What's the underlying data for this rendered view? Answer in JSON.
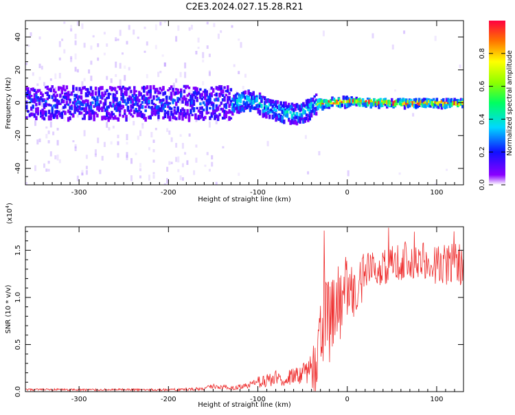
{
  "title": "C2E3.2024.027.15.28.R21",
  "chart_data": [
    {
      "type": "heatmap",
      "xlabel": "Height of straight line (km)",
      "ylabel": "Frequency (Hz)",
      "xlim": [
        -360,
        130
      ],
      "ylim": [
        -50,
        50
      ],
      "xticks": [
        -300,
        -200,
        -100,
        0,
        100
      ],
      "yticks": [
        -40,
        -20,
        0,
        20,
        40
      ],
      "colorbar": {
        "label": "Normalized spectral amplitude",
        "range": [
          0.0,
          1.0
        ],
        "ticks": [
          0.0,
          0.2,
          0.4,
          0.6,
          0.8
        ]
      },
      "ridge": {
        "x": [
          -360,
          -300,
          -250,
          -200,
          -150,
          -125,
          -110,
          -100,
          -90,
          -80,
          -70,
          -60,
          -50,
          -40,
          -30,
          -20,
          0,
          50,
          100,
          130
        ],
        "y": [
          0,
          0,
          0,
          0,
          0,
          0,
          2,
          0,
          -3,
          -5,
          -6,
          -7,
          -6,
          -2,
          0,
          0,
          1,
          0,
          0,
          0
        ]
      }
    },
    {
      "type": "line",
      "xlabel": "Height of straight line (km)",
      "ylabel": "SNR (10 * v/v)",
      "y_multiplier": "(x10",
      "y_multiplier_exp": "4",
      "y_multiplier_close": ")",
      "xlim": [
        -360,
        130
      ],
      "ylim": [
        0.0,
        1.75
      ],
      "xticks": [
        -300,
        -200,
        -100,
        0,
        100
      ],
      "yticks": [
        "0.0",
        "0.5",
        "1.0",
        "1.5"
      ],
      "color": "#ee2a2a",
      "envelope": {
        "x": [
          -360,
          -200,
          -160,
          -150,
          -130,
          -110,
          -100,
          -90,
          -80,
          -70,
          -60,
          -50,
          -40,
          -35,
          -30,
          -25,
          -20,
          -10,
          0,
          10,
          20,
          30,
          40,
          60,
          80,
          100,
          120,
          130
        ],
        "y": [
          0.02,
          0.02,
          0.03,
          0.06,
          0.04,
          0.06,
          0.1,
          0.12,
          0.14,
          0.14,
          0.16,
          0.18,
          0.25,
          0.4,
          0.6,
          0.8,
          0.75,
          0.9,
          1.0,
          1.1,
          1.25,
          1.3,
          1.35,
          1.4,
          1.38,
          1.35,
          1.35,
          1.35
        ]
      }
    }
  ]
}
